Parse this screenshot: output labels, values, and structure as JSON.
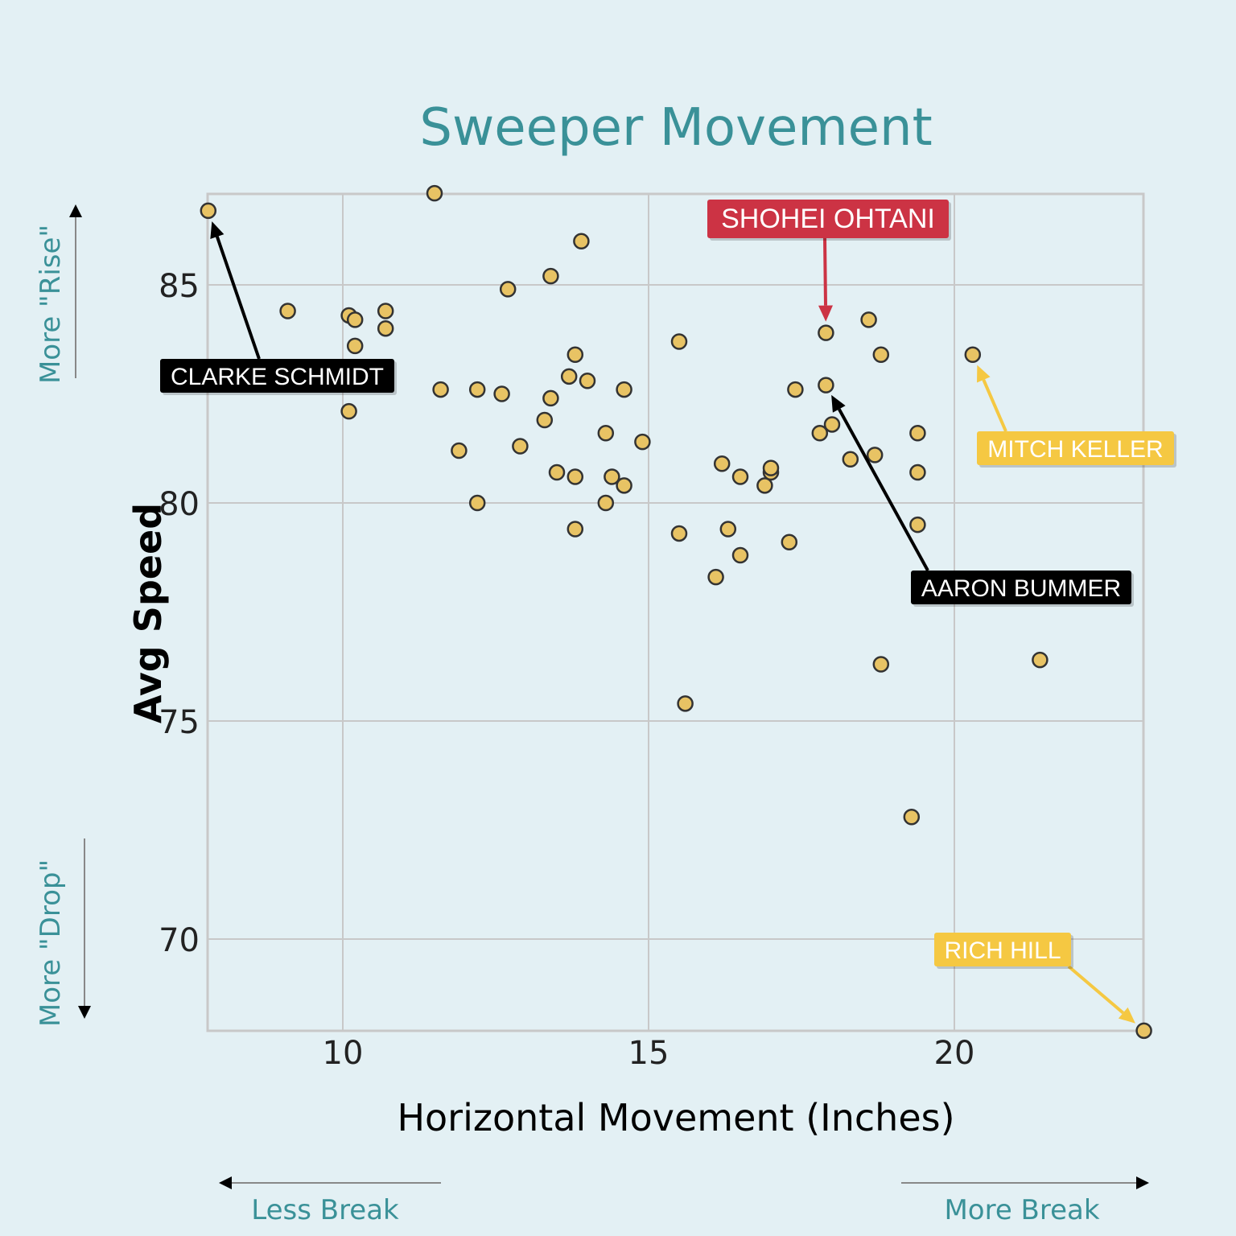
{
  "chart_data": {
    "type": "scatter",
    "title": "Sweeper Movement",
    "xlabel": "Horizontal Movement (Inches)",
    "ylabel": "Avg Speed",
    "xlim": [
      7.8,
      23.1
    ],
    "ylim": [
      67.9,
      87.1
    ],
    "xticks": [
      10,
      15,
      20
    ],
    "yticks": [
      70,
      75,
      80,
      85
    ],
    "grid": true,
    "marker_color": "#e8c364",
    "marker_edge": "#333333",
    "points": [
      {
        "x": 7.8,
        "y": 86.7
      },
      {
        "x": 11.5,
        "y": 87.1
      },
      {
        "x": 9.1,
        "y": 84.4
      },
      {
        "x": 10.1,
        "y": 84.3
      },
      {
        "x": 10.2,
        "y": 84.2
      },
      {
        "x": 10.2,
        "y": 83.6
      },
      {
        "x": 10.7,
        "y": 84.4
      },
      {
        "x": 10.7,
        "y": 84.0
      },
      {
        "x": 10.1,
        "y": 82.1
      },
      {
        "x": 12.7,
        "y": 84.9
      },
      {
        "x": 13.4,
        "y": 85.2
      },
      {
        "x": 13.9,
        "y": 86.0
      },
      {
        "x": 13.8,
        "y": 83.4
      },
      {
        "x": 13.7,
        "y": 82.9
      },
      {
        "x": 14.0,
        "y": 82.8
      },
      {
        "x": 13.4,
        "y": 82.4
      },
      {
        "x": 13.3,
        "y": 81.9
      },
      {
        "x": 11.6,
        "y": 82.6
      },
      {
        "x": 12.2,
        "y": 82.6
      },
      {
        "x": 12.6,
        "y": 82.5
      },
      {
        "x": 11.9,
        "y": 81.2
      },
      {
        "x": 12.9,
        "y": 81.3
      },
      {
        "x": 12.2,
        "y": 80.0
      },
      {
        "x": 13.5,
        "y": 80.7
      },
      {
        "x": 13.8,
        "y": 80.6
      },
      {
        "x": 13.8,
        "y": 79.4
      },
      {
        "x": 14.3,
        "y": 81.6
      },
      {
        "x": 14.6,
        "y": 82.6
      },
      {
        "x": 14.4,
        "y": 80.6
      },
      {
        "x": 14.6,
        "y": 80.4
      },
      {
        "x": 14.3,
        "y": 80.0
      },
      {
        "x": 14.9,
        "y": 81.4
      },
      {
        "x": 15.5,
        "y": 83.7
      },
      {
        "x": 15.5,
        "y": 79.3
      },
      {
        "x": 15.6,
        "y": 75.4
      },
      {
        "x": 16.1,
        "y": 78.3
      },
      {
        "x": 16.2,
        "y": 80.9
      },
      {
        "x": 16.5,
        "y": 80.6
      },
      {
        "x": 16.3,
        "y": 79.4
      },
      {
        "x": 16.5,
        "y": 78.8
      },
      {
        "x": 16.9,
        "y": 80.4
      },
      {
        "x": 17.0,
        "y": 80.7
      },
      {
        "x": 17.0,
        "y": 80.8
      },
      {
        "x": 17.3,
        "y": 79.1
      },
      {
        "x": 17.4,
        "y": 82.6
      },
      {
        "x": 17.9,
        "y": 83.9
      },
      {
        "x": 17.9,
        "y": 82.7
      },
      {
        "x": 17.8,
        "y": 81.6
      },
      {
        "x": 18.0,
        "y": 81.8
      },
      {
        "x": 18.3,
        "y": 81.0
      },
      {
        "x": 18.6,
        "y": 84.2
      },
      {
        "x": 18.8,
        "y": 83.4
      },
      {
        "x": 18.7,
        "y": 81.1
      },
      {
        "x": 18.8,
        "y": 76.3
      },
      {
        "x": 19.3,
        "y": 72.8
      },
      {
        "x": 19.4,
        "y": 81.6
      },
      {
        "x": 19.4,
        "y": 80.7
      },
      {
        "x": 19.4,
        "y": 79.5
      },
      {
        "x": 20.3,
        "y": 83.4
      },
      {
        "x": 21.4,
        "y": 76.4
      },
      {
        "x": 23.1,
        "y": 67.9
      }
    ],
    "annotations": [
      {
        "label": "CLARKE SCHMIDT",
        "x": 7.8,
        "y": 86.7,
        "color": "#000000",
        "text_color": "#ffffff"
      },
      {
        "label": "SHOHEI OHTANI",
        "x": 17.9,
        "y": 83.9,
        "color": "#cc3344",
        "text_color": "#ffffff"
      },
      {
        "label": "AARON BUMMER",
        "x": 17.9,
        "y": 82.7,
        "color": "#000000",
        "text_color": "#ffffff"
      },
      {
        "label": "MITCH KELLER",
        "x": 20.3,
        "y": 83.4,
        "color": "#f5c842",
        "text_color": "#ffffff"
      },
      {
        "label": "RICH HILL",
        "x": 23.1,
        "y": 67.9,
        "color": "#f5c842",
        "text_color": "#ffffff"
      }
    ],
    "side_labels": {
      "up": "More \"Rise\"",
      "down": "More \"Drop\"",
      "left": "Less Break",
      "right": "More Break"
    },
    "colors": {
      "background": "#e3f0f4",
      "title": "#3a9198",
      "grid": "#c8c8c8",
      "accent": "#3a9198"
    }
  }
}
